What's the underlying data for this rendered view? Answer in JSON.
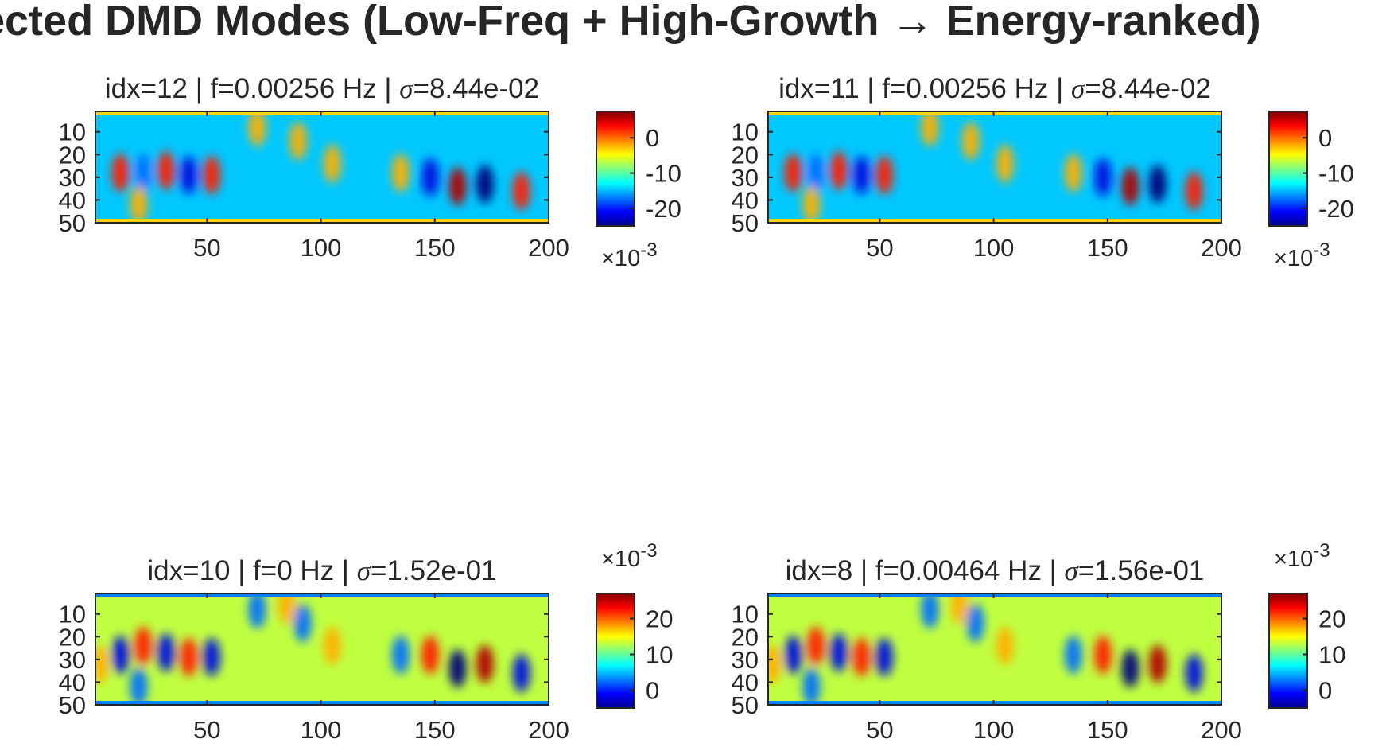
{
  "suptitle": "ected DMD Modes (Low-Freq + High-Growth → Energy-ranked)",
  "chart_data": [
    {
      "type": "heatmap",
      "title": "idx=12 | f=0.00256 Hz | σ=8.44e-02",
      "title_parts": {
        "prefix": "idx=12 | f=0.00256 Hz | ",
        "sigma": "σ",
        "value": "=8.44e-02"
      },
      "x_ticks": [
        "50",
        "100",
        "150",
        "200"
      ],
      "y_ticks": [
        "10",
        "20",
        "30",
        "40",
        "50"
      ],
      "xlim": [
        1,
        200
      ],
      "ylim": [
        1,
        50
      ],
      "colormap": "jet",
      "colorbar": {
        "range": [
          -0.025,
          0.0075
        ],
        "ticks": [
          "0",
          "-10",
          "-20"
        ],
        "tick_values": [
          0,
          -10,
          -20
        ],
        "exponent": "×10",
        "exponent_power": "-3",
        "exponent_position": "bottom"
      },
      "background": "#00c8ff",
      "blobs": [
        {
          "x": 12,
          "y": 28,
          "v": 1
        },
        {
          "x": 22,
          "y": 28,
          "v": -0.6
        },
        {
          "x": 32,
          "y": 27,
          "v": 1
        },
        {
          "x": 42,
          "y": 29,
          "v": -0.8
        },
        {
          "x": 52,
          "y": 29,
          "v": 1
        },
        {
          "x": 72,
          "y": 8,
          "v": 0.6
        },
        {
          "x": 90,
          "y": 14,
          "v": 0.6
        },
        {
          "x": 105,
          "y": 24,
          "v": 0.5
        },
        {
          "x": 135,
          "y": 28,
          "v": 0.6
        },
        {
          "x": 148,
          "y": 30,
          "v": -0.7
        },
        {
          "x": 160,
          "y": 34,
          "v": 1.3
        },
        {
          "x": 172,
          "y": 33,
          "v": -1
        },
        {
          "x": 188,
          "y": 36,
          "v": 0.9
        },
        {
          "x": 20,
          "y": 42,
          "v": 0.5
        }
      ]
    },
    {
      "type": "heatmap",
      "title": "idx=11 | f=0.00256 Hz | σ=8.44e-02",
      "title_parts": {
        "prefix": "idx=11 | f=0.00256 Hz | ",
        "sigma": "σ",
        "value": "=8.44e-02"
      },
      "x_ticks": [
        "50",
        "100",
        "150",
        "200"
      ],
      "y_ticks": [
        "10",
        "20",
        "30",
        "40",
        "50"
      ],
      "xlim": [
        1,
        200
      ],
      "ylim": [
        1,
        50
      ],
      "colormap": "jet",
      "colorbar": {
        "range": [
          -0.025,
          0.0075
        ],
        "ticks": [
          "0",
          "-10",
          "-20"
        ],
        "tick_values": [
          0,
          -10,
          -20
        ],
        "exponent": "×10",
        "exponent_power": "-3",
        "exponent_position": "bottom"
      },
      "background": "#00c8ff",
      "blobs": [
        {
          "x": 12,
          "y": 28,
          "v": 1
        },
        {
          "x": 22,
          "y": 28,
          "v": -0.6
        },
        {
          "x": 32,
          "y": 27,
          "v": 1
        },
        {
          "x": 42,
          "y": 29,
          "v": -0.8
        },
        {
          "x": 52,
          "y": 29,
          "v": 1
        },
        {
          "x": 72,
          "y": 8,
          "v": 0.6
        },
        {
          "x": 90,
          "y": 14,
          "v": 0.6
        },
        {
          "x": 105,
          "y": 24,
          "v": 0.5
        },
        {
          "x": 135,
          "y": 28,
          "v": 0.6
        },
        {
          "x": 148,
          "y": 30,
          "v": -0.7
        },
        {
          "x": 160,
          "y": 34,
          "v": 1.3
        },
        {
          "x": 172,
          "y": 33,
          "v": -1
        },
        {
          "x": 188,
          "y": 36,
          "v": 0.9
        },
        {
          "x": 20,
          "y": 42,
          "v": 0.5
        }
      ]
    },
    {
      "type": "heatmap",
      "title": "idx=10 | f=0 Hz | σ=1.52e-01",
      "title_parts": {
        "prefix": "idx=10 | f=0 Hz | ",
        "sigma": "σ",
        "value": "=1.52e-01"
      },
      "x_ticks": [
        "50",
        "100",
        "150",
        "200"
      ],
      "y_ticks": [
        "10",
        "20",
        "30",
        "40",
        "50"
      ],
      "xlim": [
        1,
        200
      ],
      "ylim": [
        1,
        50
      ],
      "colormap": "jet",
      "colorbar": {
        "range": [
          -0.005,
          0.027
        ],
        "ticks": [
          "20",
          "10",
          "0"
        ],
        "tick_values": [
          20,
          10,
          0
        ],
        "exponent": "×10",
        "exponent_power": "-3",
        "exponent_position": "top"
      },
      "background": "#bfff40",
      "blobs": [
        {
          "x": 12,
          "y": 28,
          "v": -0.8
        },
        {
          "x": 22,
          "y": 24,
          "v": 1
        },
        {
          "x": 32,
          "y": 27,
          "v": -0.7
        },
        {
          "x": 42,
          "y": 29,
          "v": 1
        },
        {
          "x": 52,
          "y": 29,
          "v": -0.9
        },
        {
          "x": 72,
          "y": 8,
          "v": -0.5
        },
        {
          "x": 85,
          "y": 6,
          "v": 0.7
        },
        {
          "x": 92,
          "y": 14,
          "v": -0.5
        },
        {
          "x": 105,
          "y": 24,
          "v": 0.6
        },
        {
          "x": 135,
          "y": 28,
          "v": -0.5
        },
        {
          "x": 148,
          "y": 28,
          "v": 0.8
        },
        {
          "x": 160,
          "y": 34,
          "v": -1.1
        },
        {
          "x": 172,
          "y": 32,
          "v": 1.2
        },
        {
          "x": 188,
          "y": 36,
          "v": -0.8
        },
        {
          "x": 20,
          "y": 42,
          "v": -0.5
        },
        {
          "x": 3,
          "y": 32,
          "v": 0.7
        }
      ]
    },
    {
      "type": "heatmap",
      "title": "idx=8 | f=0.00464 Hz | σ=1.56e-01",
      "title_parts": {
        "prefix": "idx=8 | f=0.00464 Hz | ",
        "sigma": "σ",
        "value": "=1.56e-01"
      },
      "x_ticks": [
        "50",
        "100",
        "150",
        "200"
      ],
      "y_ticks": [
        "10",
        "20",
        "30",
        "40",
        "50"
      ],
      "xlim": [
        1,
        200
      ],
      "ylim": [
        1,
        50
      ],
      "colormap": "jet",
      "colorbar": {
        "range": [
          -0.005,
          0.027
        ],
        "ticks": [
          "20",
          "10",
          "0"
        ],
        "tick_values": [
          20,
          10,
          0
        ],
        "exponent": "×10",
        "exponent_power": "-3",
        "exponent_position": "top"
      },
      "background": "#bfff40",
      "blobs": [
        {
          "x": 12,
          "y": 28,
          "v": -0.8
        },
        {
          "x": 22,
          "y": 24,
          "v": 1
        },
        {
          "x": 32,
          "y": 27,
          "v": -0.7
        },
        {
          "x": 42,
          "y": 29,
          "v": 1
        },
        {
          "x": 52,
          "y": 29,
          "v": -0.9
        },
        {
          "x": 72,
          "y": 8,
          "v": -0.5
        },
        {
          "x": 85,
          "y": 6,
          "v": 0.7
        },
        {
          "x": 92,
          "y": 14,
          "v": -0.5
        },
        {
          "x": 105,
          "y": 24,
          "v": 0.6
        },
        {
          "x": 135,
          "y": 28,
          "v": -0.5
        },
        {
          "x": 148,
          "y": 28,
          "v": 0.8
        },
        {
          "x": 160,
          "y": 34,
          "v": -1.1
        },
        {
          "x": 172,
          "y": 32,
          "v": 1.2
        },
        {
          "x": 188,
          "y": 36,
          "v": -0.8
        },
        {
          "x": 20,
          "y": 42,
          "v": -0.5
        },
        {
          "x": 3,
          "y": 32,
          "v": 0.7
        }
      ]
    }
  ]
}
